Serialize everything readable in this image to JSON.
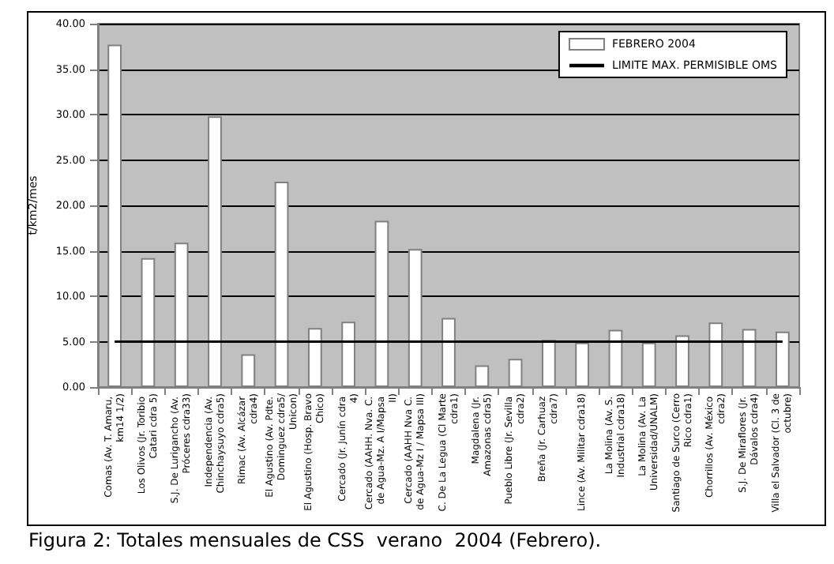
{
  "chart_data": {
    "type": "bar",
    "ylabel": "t/km2/mes",
    "categories": [
      "Comas (Av. T. Amaru, km14 1/2)",
      "Los Olivos (Jr. Toribio Catari cdra 5)",
      "S.J. De Lurigancho (Av. Próceres cdra33)",
      "Independencia (Av. Chinchaysuyo cdra5)",
      "Rimac (Av. Alcázar cdra4)",
      "El Agustino (Av. Pdte. Dominguez cdra5/Unicon)",
      "El Agustino (Hosp. Bravo Chico)",
      "Cercado (Jr. Junín cdra 4)",
      "Cercado (AAHH. Nva. C. de Agua-Mz. A I/Mapsa II)",
      "Cercado (AAHH Nva C. de Agua-Mz I / Mapsa III)",
      "C. De La Legua (Cl Marte cdra1)",
      "Magdalena (Jr. Amazonas cdra5)",
      "Pueblo Libre (Jr. Sevilla cdra2)",
      "Breña (Jr. Carhuaz cdra7)",
      "Lince (Av. Militar cdra18)",
      "La Molina (Av. S. Industrial cdra18)",
      "La Molina (Av. La Universidad/UNALM)",
      "Santiago de Surco (Cerro Rico cdra1)",
      "Chorrillos (Av. México cdra2)",
      "S.J. De Miraflores (Jr. Dávalos cdra4)",
      "Villa el Salvador (Cl. 3 de octubre)"
    ],
    "series": [
      {
        "name": "FEBRERO 2004",
        "color": "#ffffff",
        "values": [
          37.7,
          14.2,
          15.9,
          29.8,
          3.6,
          22.6,
          6.5,
          7.2,
          18.3,
          15.2,
          7.6,
          2.4,
          3.1,
          5.2,
          4.9,
          6.3,
          4.9,
          5.7,
          7.1,
          6.4,
          6.1
        ]
      },
      {
        "name": "LIMITE MAX. PERMISIBLE OMS",
        "type": "line",
        "color": "#000000",
        "marker": "none",
        "line_style": "solid",
        "values": [
          5,
          5,
          5,
          5,
          5,
          5,
          5,
          5,
          5,
          5,
          5,
          5,
          5,
          5,
          5,
          5,
          5,
          5,
          5,
          5,
          5
        ]
      }
    ],
    "ylim": [
      0,
      40
    ],
    "yticks": [
      {
        "value": 0,
        "label": "0.00"
      },
      {
        "value": 5,
        "label": "5.00"
      },
      {
        "value": 10,
        "label": "10.00"
      },
      {
        "value": 15,
        "label": "15.00"
      },
      {
        "value": 20,
        "label": "20.00"
      },
      {
        "value": 25,
        "label": "25.00"
      },
      {
        "value": 30,
        "label": "30.00"
      },
      {
        "value": 35,
        "label": "35.00"
      },
      {
        "value": 40,
        "label": "40.00"
      }
    ],
    "grid": "y",
    "legend": "top right",
    "annotations": [
      "Figura 2: Totales mensuales de CSS  verano  2004 (Febrero)."
    ]
  }
}
